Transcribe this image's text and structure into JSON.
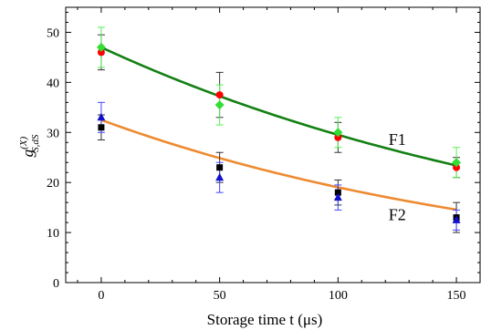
{
  "chart_data": {
    "type": "scatter",
    "xlabel": "Storage time t (μs)",
    "ylabel": {
      "main": "g",
      "superscript": "(X)",
      "subscript": "S,dS"
    },
    "xlim": [
      -15,
      160
    ],
    "ylim": [
      0,
      55
    ],
    "xticks": [
      0,
      50,
      100,
      150
    ],
    "yticks": [
      0,
      10,
      20,
      30,
      40,
      50
    ],
    "grid": false,
    "series": [
      {
        "marker": "circle",
        "color": "#ff0000",
        "error_color": "#333333",
        "x": [
          0,
          50,
          100,
          150
        ],
        "y": [
          46.0,
          37.5,
          29.0,
          23.0
        ],
        "err": [
          3.5,
          4.5,
          3.0,
          2.0
        ]
      },
      {
        "marker": "diamond",
        "color": "#33dd33",
        "error_color": "#55ee55",
        "x": [
          0,
          50,
          100,
          150
        ],
        "y": [
          47.0,
          35.5,
          30.0,
          24.0
        ],
        "err": [
          4.0,
          4.0,
          3.0,
          3.0
        ]
      },
      {
        "marker": "square",
        "color": "#000000",
        "error_color": "#333333",
        "x": [
          0,
          50,
          100,
          150
        ],
        "y": [
          31.0,
          23.0,
          18.0,
          13.0
        ],
        "err": [
          2.5,
          3.0,
          2.5,
          3.0
        ]
      },
      {
        "marker": "triangle",
        "color": "#1111cc",
        "error_color": "#4444ff",
        "x": [
          0,
          50,
          100,
          150
        ],
        "y": [
          33.0,
          21.0,
          17.0,
          12.5
        ],
        "err": [
          3.0,
          3.0,
          2.5,
          2.0
        ]
      }
    ],
    "fits": [
      {
        "label": "F1",
        "color": "#128012",
        "start": 47.0,
        "tau": 215,
        "label_at": [
          125,
          27.5
        ]
      },
      {
        "label": "F2",
        "color": "#ee8a30",
        "start": 32.5,
        "tau": 187,
        "label_at": [
          125,
          12.5
        ]
      }
    ]
  }
}
